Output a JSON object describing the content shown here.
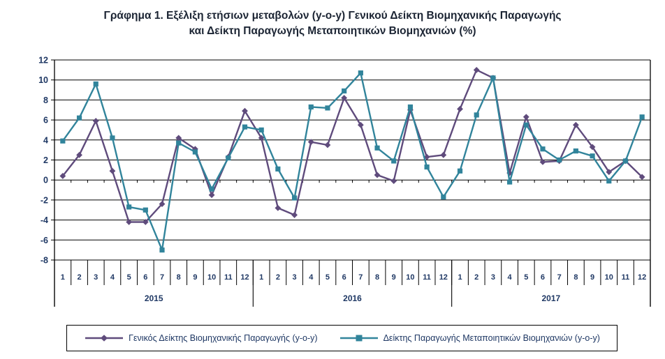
{
  "title": {
    "line1": "Γράφημα 1. Εξέλιξη ετήσιων μεταβολών (y-o-y) Γενικού Δείκτη Βιομηχανικής Παραγωγής",
    "line2": "και Δείκτη Παραγωγής Μεταποιητικών Βιομηχανιών (%)"
  },
  "colors": {
    "grid": "#000000",
    "axis_text": "#1F3864",
    "title_text": "#1b2433",
    "series_general": "#5F4B7C",
    "series_manufacturing": "#31849B"
  },
  "chart_data": {
    "type": "line",
    "title": "Γράφημα 1. Εξέλιξη ετήσιων μεταβολών (y-o-y) Γενικού Δείκτη Βιομηχανικής Παραγωγής και Δείκτη Παραγωγής Μεταποιητικών Βιομηχανιών (%)",
    "xlabel": "",
    "ylabel": "",
    "ylim": [
      -8,
      12
    ],
    "ytick_step": 2,
    "grid": true,
    "legend_position": "bottom",
    "years": [
      "2015",
      "2016",
      "2017"
    ],
    "month_labels": [
      "1",
      "2",
      "3",
      "4",
      "5",
      "6",
      "7",
      "8",
      "9",
      "10",
      "11",
      "12"
    ],
    "series": [
      {
        "name": "Γενικός Δείκτης Βιομηχανικής Παραγωγής (y-o-y)",
        "marker": "diamond",
        "color": "#5F4B7C",
        "values": [
          0.4,
          2.5,
          5.9,
          0.9,
          -4.2,
          -4.2,
          -2.4,
          4.2,
          3.1,
          -1.5,
          2.3,
          6.9,
          4.2,
          -2.8,
          -3.5,
          3.8,
          3.5,
          8.2,
          5.5,
          0.5,
          -0.1,
          7.0,
          2.3,
          2.5,
          7.1,
          11.0,
          10.2,
          0.7,
          6.3,
          1.8,
          1.9,
          5.5,
          3.3,
          0.8,
          1.9,
          0.3
        ]
      },
      {
        "name": "Δείκτης Παραγωγής Μεταποιητικών Βιομηχανιών (y-o-y)",
        "marker": "square",
        "color": "#31849B",
        "values": [
          3.9,
          6.2,
          9.6,
          4.2,
          -2.7,
          -3.0,
          -7.0,
          3.7,
          2.8,
          -0.9,
          2.2,
          5.3,
          5.0,
          1.1,
          -1.8,
          7.3,
          7.2,
          8.9,
          10.7,
          3.2,
          1.9,
          7.3,
          1.3,
          -1.7,
          0.9,
          6.5,
          10.2,
          -0.2,
          5.5,
          3.1,
          2.0,
          2.9,
          2.4,
          -0.1,
          1.9,
          6.3
        ]
      }
    ]
  }
}
